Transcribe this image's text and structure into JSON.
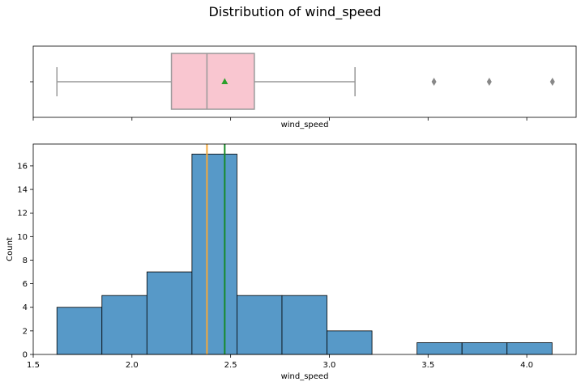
{
  "title": "Distribution of wind_speed",
  "colors": {
    "box_fill": "#f9c6d0",
    "box_line": "#999999",
    "mean_marker": "#2ca02c",
    "flier": "#888888",
    "bar_fill": "#5799c8",
    "bar_edge": "#000000",
    "median_line": "#f4a93b",
    "mean_line": "#178a2a"
  },
  "chart_data": [
    {
      "type": "box",
      "xlabel": "wind_speed",
      "xlim": [
        1.5,
        4.25
      ],
      "xticks": [
        1.5,
        2.0,
        2.5,
        3.0,
        3.5,
        4.0
      ],
      "stats": {
        "whisker_low": 1.62,
        "q1": 2.2,
        "median": 2.38,
        "mean": 2.47,
        "q3": 2.62,
        "whisker_high": 3.13,
        "outliers": [
          3.53,
          3.81,
          4.13
        ]
      },
      "mean_marker": "triangle"
    },
    {
      "type": "bar",
      "xlabel": "wind_speed",
      "ylabel": "Count",
      "xlim": [
        1.5,
        4.25
      ],
      "ylim": [
        0,
        17.85
      ],
      "xticks": [
        "1.5",
        "2.0",
        "2.5",
        "3.0",
        "3.5",
        "4.0"
      ],
      "yticks": [
        "0",
        "2",
        "4",
        "6",
        "8",
        "10",
        "12",
        "14",
        "16"
      ],
      "bins": [
        {
          "x0": 1.62,
          "x1": 1.848,
          "count": 4
        },
        {
          "x0": 1.848,
          "x1": 2.076,
          "count": 5
        },
        {
          "x0": 2.076,
          "x1": 2.304,
          "count": 7
        },
        {
          "x0": 2.304,
          "x1": 2.532,
          "count": 17
        },
        {
          "x0": 2.532,
          "x1": 2.76,
          "count": 5
        },
        {
          "x0": 2.76,
          "x1": 2.988,
          "count": 5
        },
        {
          "x0": 2.988,
          "x1": 3.216,
          "count": 2
        },
        {
          "x0": 3.216,
          "x1": 3.444,
          "count": 0
        },
        {
          "x0": 3.444,
          "x1": 3.672,
          "count": 1
        },
        {
          "x0": 3.672,
          "x1": 3.9,
          "count": 1
        },
        {
          "x0": 3.9,
          "x1": 4.128,
          "count": 1
        }
      ],
      "vlines": [
        {
          "name": "median",
          "x": 2.38
        },
        {
          "name": "mean",
          "x": 2.47
        }
      ]
    }
  ]
}
